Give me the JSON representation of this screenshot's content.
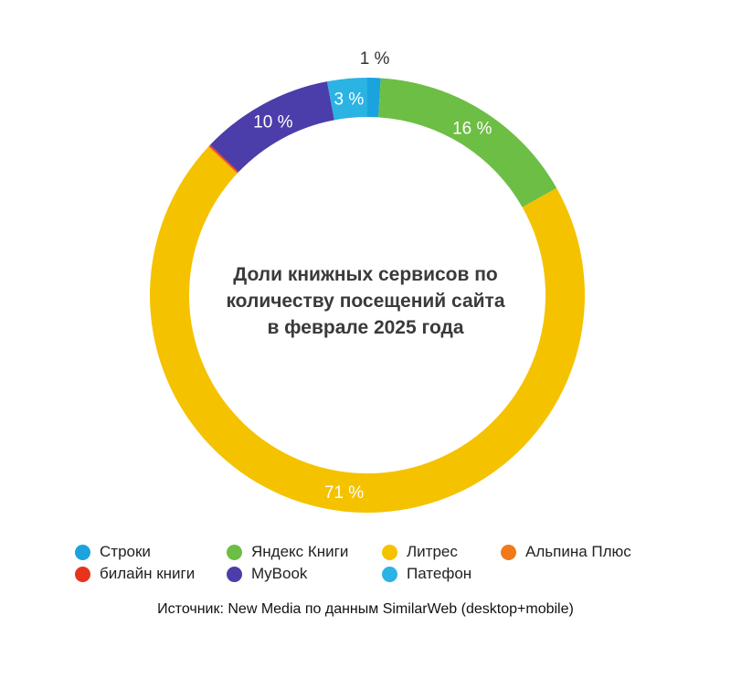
{
  "chart_data": {
    "type": "pie",
    "title": "Доли книжных сервисов по количеству посещений сайта в феврале 2025 года",
    "title_lines": [
      "Доли книжных сервисов по",
      "количеству посещений сайта",
      "в феврале 2025 года"
    ],
    "slices": [
      {
        "name": "Строки",
        "value": 1,
        "label": "1 %",
        "color": "#1AA3DD"
      },
      {
        "name": "Яндекс Книги",
        "value": 16,
        "label": "16 %",
        "color": "#6CBE45"
      },
      {
        "name": "Литрес",
        "value": 71,
        "label": "71 %",
        "color": "#F5C200"
      },
      {
        "name": "Альпина Плюс",
        "value": 0.1,
        "label": "",
        "color": "#F07A1A"
      },
      {
        "name": "билайн книги",
        "value": 0.1,
        "label": "",
        "color": "#E8331C"
      },
      {
        "name": "MyBook",
        "value": 10,
        "label": "10 %",
        "color": "#4B3DAA"
      },
      {
        "name": "Патефон",
        "value": 3,
        "label": "3 %",
        "color": "#2AB3E3"
      }
    ],
    "legend": {
      "placement": "bottom",
      "items": [
        {
          "name": "Строки",
          "color": "#1AA3DD"
        },
        {
          "name": "Яндекс Книги",
          "color": "#6CBE45"
        },
        {
          "name": "Литрес",
          "color": "#F5C200"
        },
        {
          "name": "Альпина Плюс",
          "color": "#F07A1A"
        },
        {
          "name": "билайн книги",
          "color": "#E8331C"
        },
        {
          "name": "MyBook",
          "color": "#4B3DAA"
        },
        {
          "name": "Патефон",
          "color": "#2AB3E3"
        }
      ]
    }
  },
  "source": "Источник: New Media по данным SimilarWeb (desktop+mobile)"
}
